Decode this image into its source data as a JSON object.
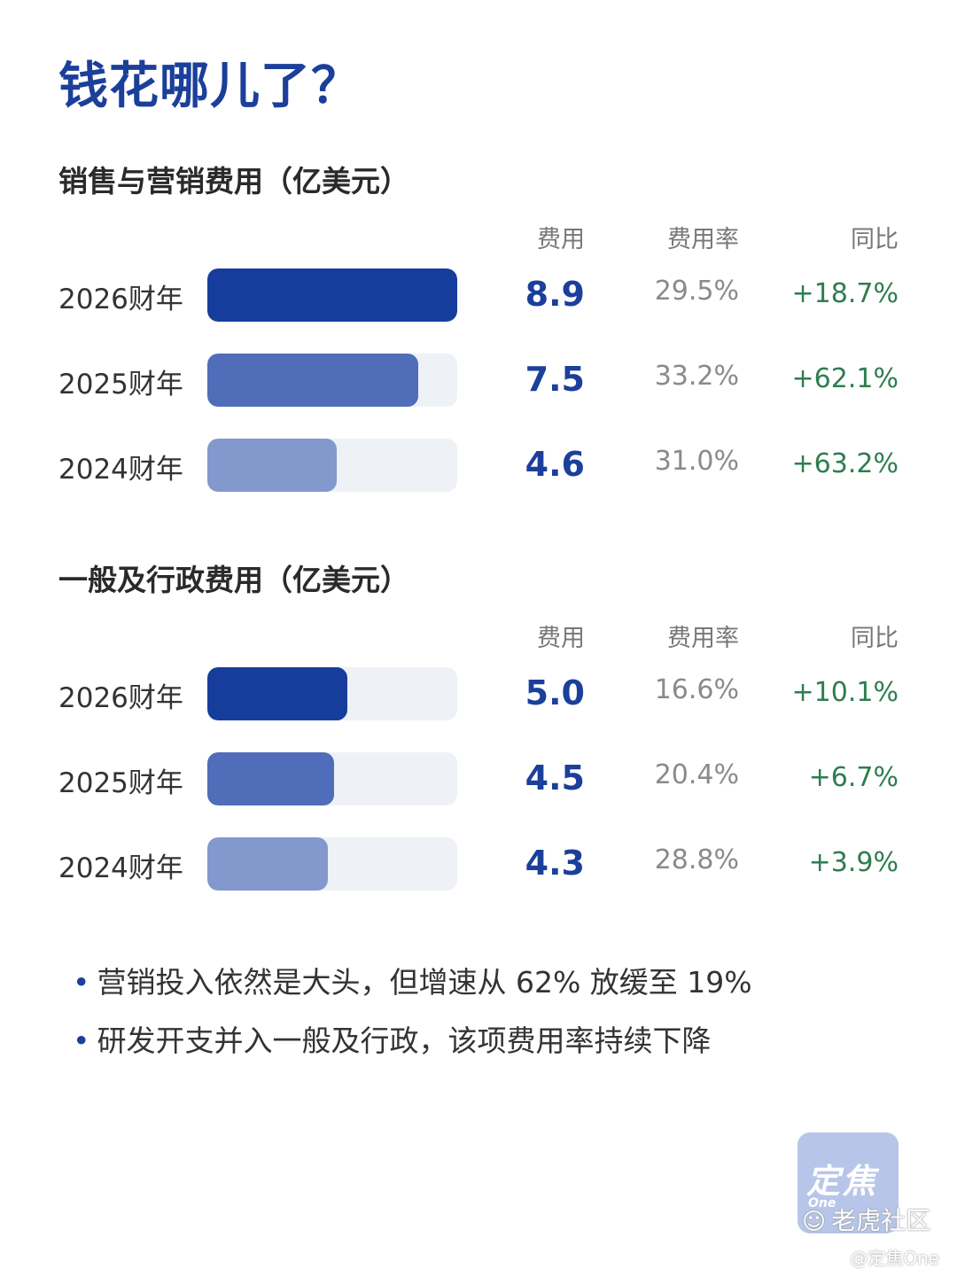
{
  "page_title": "钱花哪儿了？",
  "columns": {
    "expense": "费用",
    "rate": "费用率",
    "yoy": "同比"
  },
  "colors": {
    "fy2026": "#173d9c",
    "fy2025": "#4f6db8",
    "fy2024": "#8398cd",
    "track": "#eef2f7"
  },
  "chart_data": [
    {
      "type": "bar",
      "title": "销售与营销费用（亿美元）",
      "xlim": [
        0,
        8.9
      ],
      "rows": [
        {
          "label": "2026财年",
          "value": 8.9,
          "value_text": "8.9",
          "rate": "29.5%",
          "yoy": "+18.7%",
          "color_key": "fy2026"
        },
        {
          "label": "2025财年",
          "value": 7.5,
          "value_text": "7.5",
          "rate": "33.2%",
          "yoy": "+62.1%",
          "color_key": "fy2025"
        },
        {
          "label": "2024财年",
          "value": 4.6,
          "value_text": "4.6",
          "rate": "31.0%",
          "yoy": "+63.2%",
          "color_key": "fy2024"
        }
      ]
    },
    {
      "type": "bar",
      "title": "一般及行政费用（亿美元）",
      "xlim": [
        0,
        8.9
      ],
      "rows": [
        {
          "label": "2026财年",
          "value": 5.0,
          "value_text": "5.0",
          "rate": "16.6%",
          "yoy": "+10.1%",
          "color_key": "fy2026"
        },
        {
          "label": "2025财年",
          "value": 4.5,
          "value_text": "4.5",
          "rate": "20.4%",
          "yoy": "+6.7%",
          "color_key": "fy2025"
        },
        {
          "label": "2024财年",
          "value": 4.3,
          "value_text": "4.3",
          "rate": "28.8%",
          "yoy": "+3.9%",
          "color_key": "fy2024"
        }
      ]
    }
  ],
  "notes": [
    "营销投入依然是大头，但增速从 62% 放缓至 19%",
    "研发开支并入一般及行政，该项费用率持续下降"
  ],
  "bullet_glyph": "•",
  "logo": {
    "main": "定焦",
    "sub": "One"
  },
  "watermark": {
    "icon": "☺",
    "text": "老虎社区"
  },
  "credit": "@定焦One"
}
